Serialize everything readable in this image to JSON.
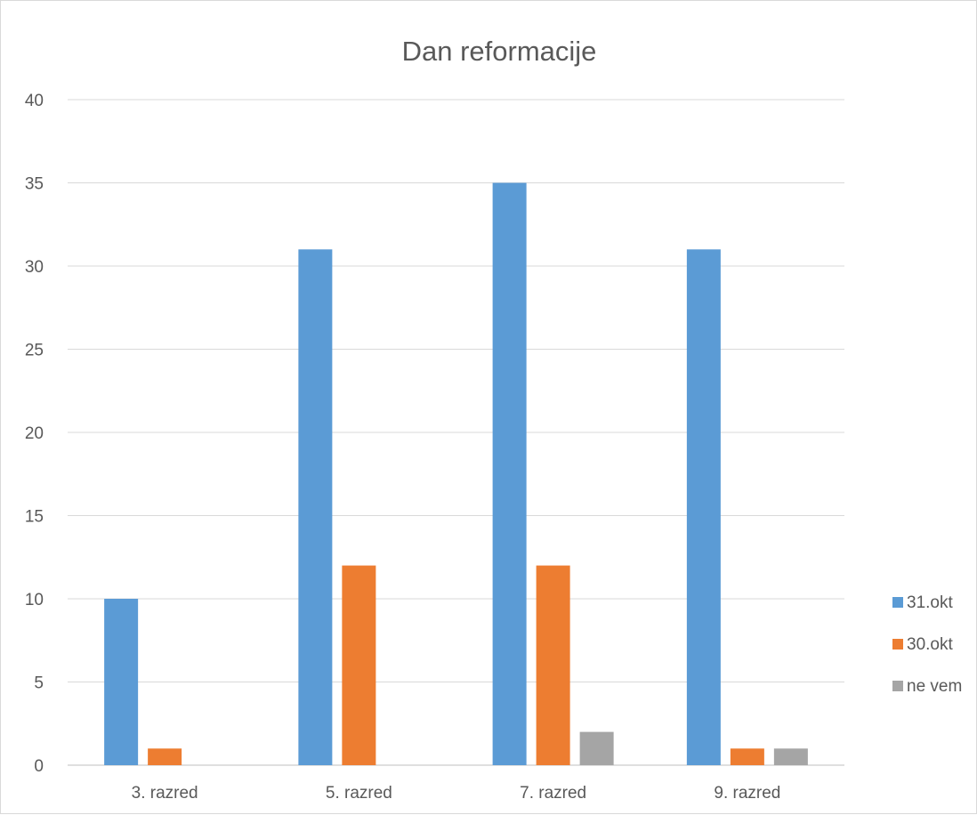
{
  "chart_data": {
    "type": "bar",
    "title": "Dan reformacije",
    "xlabel": "",
    "ylabel": "",
    "categories": [
      "3. razred",
      "5. razred",
      "7. razred",
      "9. razred"
    ],
    "series": [
      {
        "name": "31.okt",
        "color": "#5b9bd5",
        "values": [
          10,
          31,
          35,
          31
        ]
      },
      {
        "name": "30.okt",
        "color": "#ed7d31",
        "values": [
          1,
          12,
          12,
          1
        ]
      },
      {
        "name": "ne vem",
        "color": "#a5a5a5",
        "values": [
          0,
          0,
          2,
          1
        ]
      }
    ],
    "ylim": [
      0,
      40
    ],
    "yticks": [
      0,
      5,
      10,
      15,
      20,
      25,
      30,
      35,
      40
    ],
    "grid": true,
    "legend_position": "right"
  }
}
